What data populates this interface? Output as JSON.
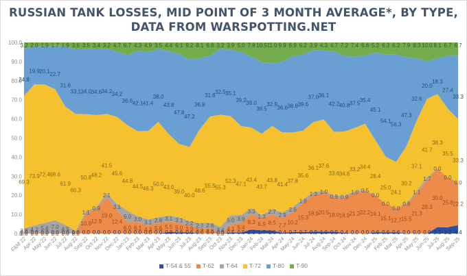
{
  "chart_data": {
    "type": "area",
    "stacked": true,
    "title": "RUSSIAN TANK LOSSES, MID POINT OF 3 MONTH AVERAGE*, BY TYPE, DATA FROM WARSPOTTING.NET",
    "title_lines": [
      "RUSSIAN TANK LOSSES, MID POINT OF 3 MONTH AVERAGE*, BY TYPE,",
      "DATA FROM WARSPOTTING.NET"
    ],
    "xlabel": "",
    "ylabel": "",
    "ylim": [
      0,
      100
    ],
    "yticks": [
      "0.0",
      "10.0",
      "20.0",
      "30.0",
      "40.0",
      "50.0",
      "60.0",
      "70.0",
      "80.0",
      "90.0",
      "100.0"
    ],
    "grid": false,
    "legend_position": "bottom",
    "categories": [
      "F&M 22",
      "Apr-22",
      "May-22",
      "Jun-22",
      "Jul-22",
      "Aug-22",
      "Sep-22",
      "Oct-22",
      "Nov-22",
      "Dec-22",
      "Jan-23",
      "Feb-23",
      "Mar-23",
      "Apr-23",
      "May-23",
      "Jun-23",
      "Jul-23",
      "Aug-23",
      "Sep-23",
      "Oct-23",
      "Nov-23",
      "Dec-23",
      "Jan-24",
      "Feb-24",
      "Mar-24",
      "Apr-24",
      "May-24",
      "Jun-24",
      "Jul-24",
      "Aug-24",
      "Sep-24",
      "Oct-24",
      "Nov-24",
      "Dec-24",
      "Jan-25",
      "Feb-25",
      "Mar-25",
      "Apr-25",
      "May-25",
      "Jun-25",
      "Jul-25",
      "Aug-25",
      "Sep-25"
    ],
    "series": [
      {
        "name": "T-54 & 55",
        "color": "#2f4f9e",
        "values": [
          0.0,
          0.0,
          0.0,
          0.0,
          0.0,
          0.0,
          0.0,
          0.0,
          0.0,
          0.0,
          0.0,
          0.0,
          0.0,
          0.0,
          0.8,
          0.6,
          0.6,
          0.0,
          0.0,
          0.0,
          0.5,
          0.5,
          2.1,
          1.7,
          1.6,
          0.4,
          0.7,
          0.7,
          0.9,
          1.0,
          0.9,
          0.4,
          0.0,
          0.0,
          0.6,
          0.6,
          0.6,
          0.0,
          0.0,
          0.0,
          3.3,
          3.2,
          4.4
        ]
      },
      {
        "name": "T-62",
        "color": "#ed8b4a",
        "values": [
          0.0,
          0.0,
          0.0,
          0.0,
          0.0,
          0.0,
          10.6,
          12.9,
          19.0,
          12.4,
          6.0,
          6.1,
          4.3,
          5.6,
          5.5,
          5.0,
          3.9,
          2.7,
          2.8,
          0.0,
          4.1,
          5.4,
          8.3,
          6.9,
          8.5,
          7.7,
          10.2,
          15.3,
          18.9,
          20.5,
          18.0,
          18.9,
          21.2,
          22.2,
          19.1,
          15.1,
          12.7,
          15.5,
          21.3,
          28.3,
          30.0,
          25.8,
          22.2
        ]
      },
      {
        "name": "T-64",
        "color": "#a5a5a5",
        "values": [
          2.8,
          4.2,
          5.6,
          7.0,
          4.5,
          1.3,
          1.1,
          0.9,
          2.1,
          3.1,
          6.0,
          3.0,
          3.1,
          2.8,
          3.1,
          3.1,
          2.2,
          2.7,
          2.8,
          3.4,
          5.0,
          3.9,
          3.3,
          1.3,
          2.7,
          2.9,
          2.6,
          1.8,
          1.3,
          1.0,
          0.9,
          0.9,
          1.0,
          0.5,
          0.0,
          0.0,
          0.0,
          0.8,
          1.1,
          1.7,
          0.0,
          0.0,
          0.0
        ]
      },
      {
        "name": "T-72",
        "color": "#f5c12e",
        "values": [
          69.3,
          73.9,
          72.4,
          68.6,
          61.9,
          60.3,
          50.8,
          48.2,
          41.5,
          45.6,
          44.8,
          44.5,
          46.3,
          50.0,
          43.0,
          39.0,
          40.0,
          48.6,
          55.5,
          55.3,
          52.3,
          47.1,
          43.4,
          43.7,
          43.8,
          41.4,
          37.8,
          35.6,
          36.1,
          37.6,
          33.6,
          34.8,
          33.2,
          34.4,
          28.4,
          25.0,
          24.1,
          30.2,
          37.1,
          41.7,
          38.3,
          35.5,
          33.3
        ]
      },
      {
        "name": "T-80",
        "color": "#6a9fd4",
        "values": [
          24.8,
          19.9,
          20.1,
          22.7,
          31.6,
          33.1,
          34.0,
          34.6,
          34.2,
          34.2,
          36.6,
          42.1,
          41.4,
          38.0,
          43.8,
          47.8,
          47.2,
          36.8,
          31.8,
          32.5,
          35.1,
          39.2,
          38.0,
          38.5,
          32.9,
          36.6,
          38.8,
          39.6,
          37.0,
          36.1,
          42.2,
          40.8,
          37.5,
          35.4,
          45.1,
          54.1,
          56.3,
          47.3,
          32.6,
          20.0,
          18.3,
          27.4,
          33.3
        ]
      },
      {
        "name": "T-90",
        "color": "#72ac4d",
        "values": [
          3.2,
          2.0,
          1.9,
          1.7,
          1.9,
          3.6,
          3.5,
          3.4,
          3.2,
          4.7,
          6.7,
          4.3,
          4.9,
          3.5,
          4.4,
          6.1,
          9.2,
          8.1,
          6.8,
          3.2,
          3.9,
          5.0,
          7.8,
          10.5,
          11.0,
          9.9,
          6.9,
          6.2,
          3.9,
          4.3,
          4.7,
          7.2,
          7.4,
          6.8,
          5.2,
          6.3,
          6.2,
          7.9,
          8.3,
          10.0,
          8.1,
          6.7,
          6.7
        ]
      }
    ]
  }
}
